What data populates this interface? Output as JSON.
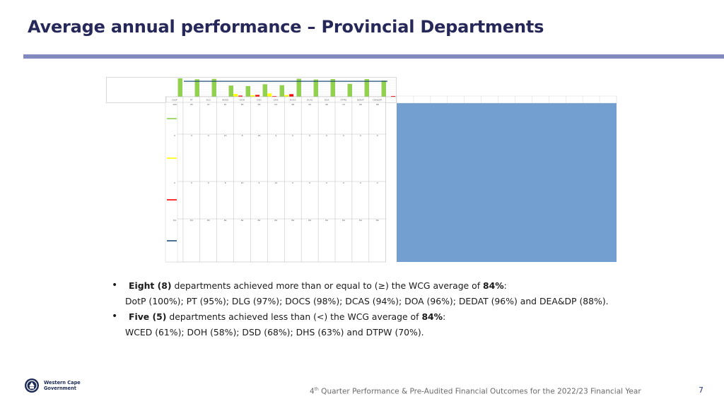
{
  "slide": {
    "title": "Average annual performance – Provincial Departments",
    "page_number": "7",
    "footer_sup": "th",
    "footer_rest": " Quarter Performance & Pre-Audited Financial Outcomes for the 2022/23 Financial Year",
    "footer_prefix": "4",
    "logo_line1": "Western Cape",
    "logo_line2": "Government"
  },
  "bullets": [
    {
      "bold": "Eight (8)",
      "text": " departments achieved more than or equal to (≥) the WCG average of ",
      "bold2": "84%",
      "end": ":"
    },
    {
      "text": "DotP (100%); PT (95%); DLG (97%); DOCS (98%); DCAS (94%); DOA (96%); DEDAT (96%) and DEA&DP (88%)."
    },
    {
      "bold": "Five (5)",
      "text": " departments achieved less than (<) the WCG average of ",
      "bold2": "84%",
      "end": ":"
    },
    {
      "text": "WCED (61%); DOH (58%); DSD (68%); DHS (63%) and DTPW (70%)."
    }
  ],
  "colors": {
    "title": "#27285a",
    "rule": "#8289bf",
    "achieved": "#92d050",
    "partial": "#ffff00",
    "not_achieved": "#ff0000",
    "average": "#1f4e79",
    "panel": "#729fcf"
  },
  "chart_data": {
    "type": "bar",
    "categories": [
      "DotP",
      "PT",
      "DLG",
      "WCED",
      "DOH",
      "DSD",
      "DHS",
      "DOCS",
      "DCAS",
      "DOA",
      "DTPW",
      "DEDAT",
      "DEA&DP"
    ],
    "series": [
      {
        "values": [
          100,
          95,
          97,
          61,
          58,
          68,
          63,
          98,
          94,
          96,
          70,
          96,
          88
        ],
        "color": "#92d050"
      },
      {
        "values": [
          0,
          0,
          0,
          15,
          8,
          18,
          9,
          0,
          0,
          0,
          0,
          0,
          0
        ],
        "color": "#ffff00"
      },
      {
        "values": [
          0,
          0,
          0,
          6,
          10,
          4,
          14,
          0,
          0,
          0,
          0,
          0,
          4
        ],
        "color": "#ff0000"
      },
      {
        "type": "line",
        "values": [
          84,
          84,
          84,
          84,
          84,
          84,
          84,
          84,
          84,
          84,
          84,
          84,
          84
        ],
        "color": "#1f4e79"
      }
    ],
    "ylim": [
      0,
      100
    ],
    "icon_names": [
      "western-cape-crest-icon"
    ]
  }
}
